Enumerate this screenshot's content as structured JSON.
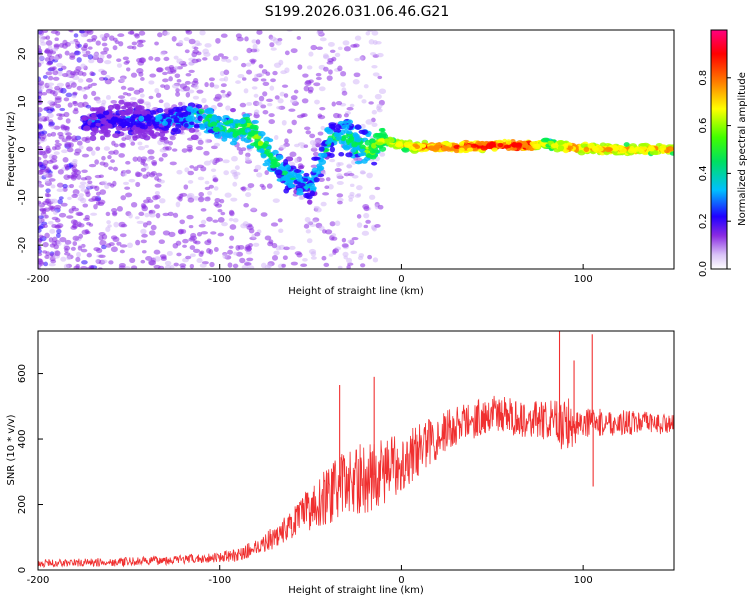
{
  "figure": {
    "title": "S199.2026.031.06.46.G21"
  },
  "chart_data": [
    {
      "type": "heatmap",
      "title": "",
      "xlabel": "Height of straight line (km)",
      "ylabel": "Frequency (Hz)",
      "xlim": [
        -200,
        150
      ],
      "ylim": [
        -25,
        25
      ],
      "x_ticks": [
        -200,
        -100,
        0,
        100
      ],
      "y_ticks": [
        -20,
        -10,
        0,
        10,
        20
      ],
      "colorbar": {
        "label": "Normalized spectral amplitude",
        "range": [
          0,
          1
        ],
        "ticks": [
          0.0,
          0.2,
          0.4,
          0.6,
          0.8
        ],
        "tick_labels": [
          "0.0",
          "0.2",
          "0.4",
          "0.6",
          "0.8"
        ],
        "colormap": [
          "#ffffff",
          "#c9a8f5",
          "#7a1ee0",
          "#0000ff",
          "#00c8ff",
          "#00ff00",
          "#ffff00",
          "#ff8000",
          "#ff0000",
          "#ff0080"
        ]
      },
      "ridge": [
        {
          "x": -170,
          "y": 6,
          "a": 0.3
        },
        {
          "x": -135,
          "y": 6,
          "a": 0.35
        },
        {
          "x": -110,
          "y": 7,
          "a": 0.45
        },
        {
          "x": -95,
          "y": 4,
          "a": 0.5
        },
        {
          "x": -85,
          "y": 5,
          "a": 0.55
        },
        {
          "x": -75,
          "y": 0,
          "a": 0.55
        },
        {
          "x": -65,
          "y": -5,
          "a": 0.45
        },
        {
          "x": -50,
          "y": -8,
          "a": 0.4
        },
        {
          "x": -40,
          "y": 2,
          "a": 0.45
        },
        {
          "x": -30,
          "y": 3,
          "a": 0.5
        },
        {
          "x": -20,
          "y": 0,
          "a": 0.55
        },
        {
          "x": -10,
          "y": 2,
          "a": 0.65
        },
        {
          "x": 0,
          "y": 1,
          "a": 0.75
        },
        {
          "x": 10,
          "y": 0.5,
          "a": 0.85
        },
        {
          "x": 30,
          "y": 0.5,
          "a": 0.9
        },
        {
          "x": 50,
          "y": 0.8,
          "a": 0.95
        },
        {
          "x": 70,
          "y": 0.8,
          "a": 0.95
        },
        {
          "x": 80,
          "y": 1.2,
          "a": 0.6
        },
        {
          "x": 90,
          "y": 0.5,
          "a": 0.85
        },
        {
          "x": 110,
          "y": 0,
          "a": 0.8
        },
        {
          "x": 130,
          "y": 0,
          "a": 0.8
        },
        {
          "x": 150,
          "y": 0,
          "a": 0.8
        }
      ]
    },
    {
      "type": "line",
      "title": "",
      "xlabel": "Height of straight line (km)",
      "ylabel": "SNR (10 * v/v)",
      "xlim": [
        -200,
        150
      ],
      "ylim": [
        0,
        730
      ],
      "x_ticks": [
        -200,
        -100,
        0,
        100
      ],
      "y_ticks": [
        0,
        200,
        400,
        600
      ],
      "series": [
        {
          "name": "SNR",
          "color": "#f03030",
          "trend": [
            {
              "x": -200,
              "y": 20
            },
            {
              "x": -150,
              "y": 25
            },
            {
              "x": -110,
              "y": 35
            },
            {
              "x": -90,
              "y": 45
            },
            {
              "x": -80,
              "y": 70
            },
            {
              "x": -70,
              "y": 100
            },
            {
              "x": -60,
              "y": 140
            },
            {
              "x": -50,
              "y": 190
            },
            {
              "x": -40,
              "y": 230
            },
            {
              "x": -30,
              "y": 270
            },
            {
              "x": -20,
              "y": 280
            },
            {
              "x": -10,
              "y": 300
            },
            {
              "x": 0,
              "y": 330
            },
            {
              "x": 10,
              "y": 370
            },
            {
              "x": 20,
              "y": 410
            },
            {
              "x": 30,
              "y": 440
            },
            {
              "x": 40,
              "y": 460
            },
            {
              "x": 50,
              "y": 480
            },
            {
              "x": 60,
              "y": 470
            },
            {
              "x": 70,
              "y": 460
            },
            {
              "x": 80,
              "y": 455
            },
            {
              "x": 90,
              "y": 445
            },
            {
              "x": 100,
              "y": 450
            },
            {
              "x": 110,
              "y": 450
            },
            {
              "x": 120,
              "y": 450
            },
            {
              "x": 130,
              "y": 450
            },
            {
              "x": 150,
              "y": 445
            }
          ],
          "noise": [
            {
              "x": -200,
              "y": 12
            },
            {
              "x": -100,
              "y": 15
            },
            {
              "x": -80,
              "y": 25
            },
            {
              "x": -60,
              "y": 45
            },
            {
              "x": -40,
              "y": 90
            },
            {
              "x": -20,
              "y": 110
            },
            {
              "x": 0,
              "y": 90
            },
            {
              "x": 20,
              "y": 70
            },
            {
              "x": 50,
              "y": 55
            },
            {
              "x": 80,
              "y": 60
            },
            {
              "x": 90,
              "y": 90
            },
            {
              "x": 100,
              "y": 45
            },
            {
              "x": 150,
              "y": 30
            }
          ],
          "spikes": [
            {
              "x": -34,
              "y": 565
            },
            {
              "x": -15,
              "y": 590
            },
            {
              "x": 87,
              "y": 730
            },
            {
              "x": 95,
              "y": 640
            },
            {
              "x": 105,
              "y": 720
            },
            {
              "x": 105.5,
              "y": 255
            }
          ]
        }
      ]
    }
  ]
}
